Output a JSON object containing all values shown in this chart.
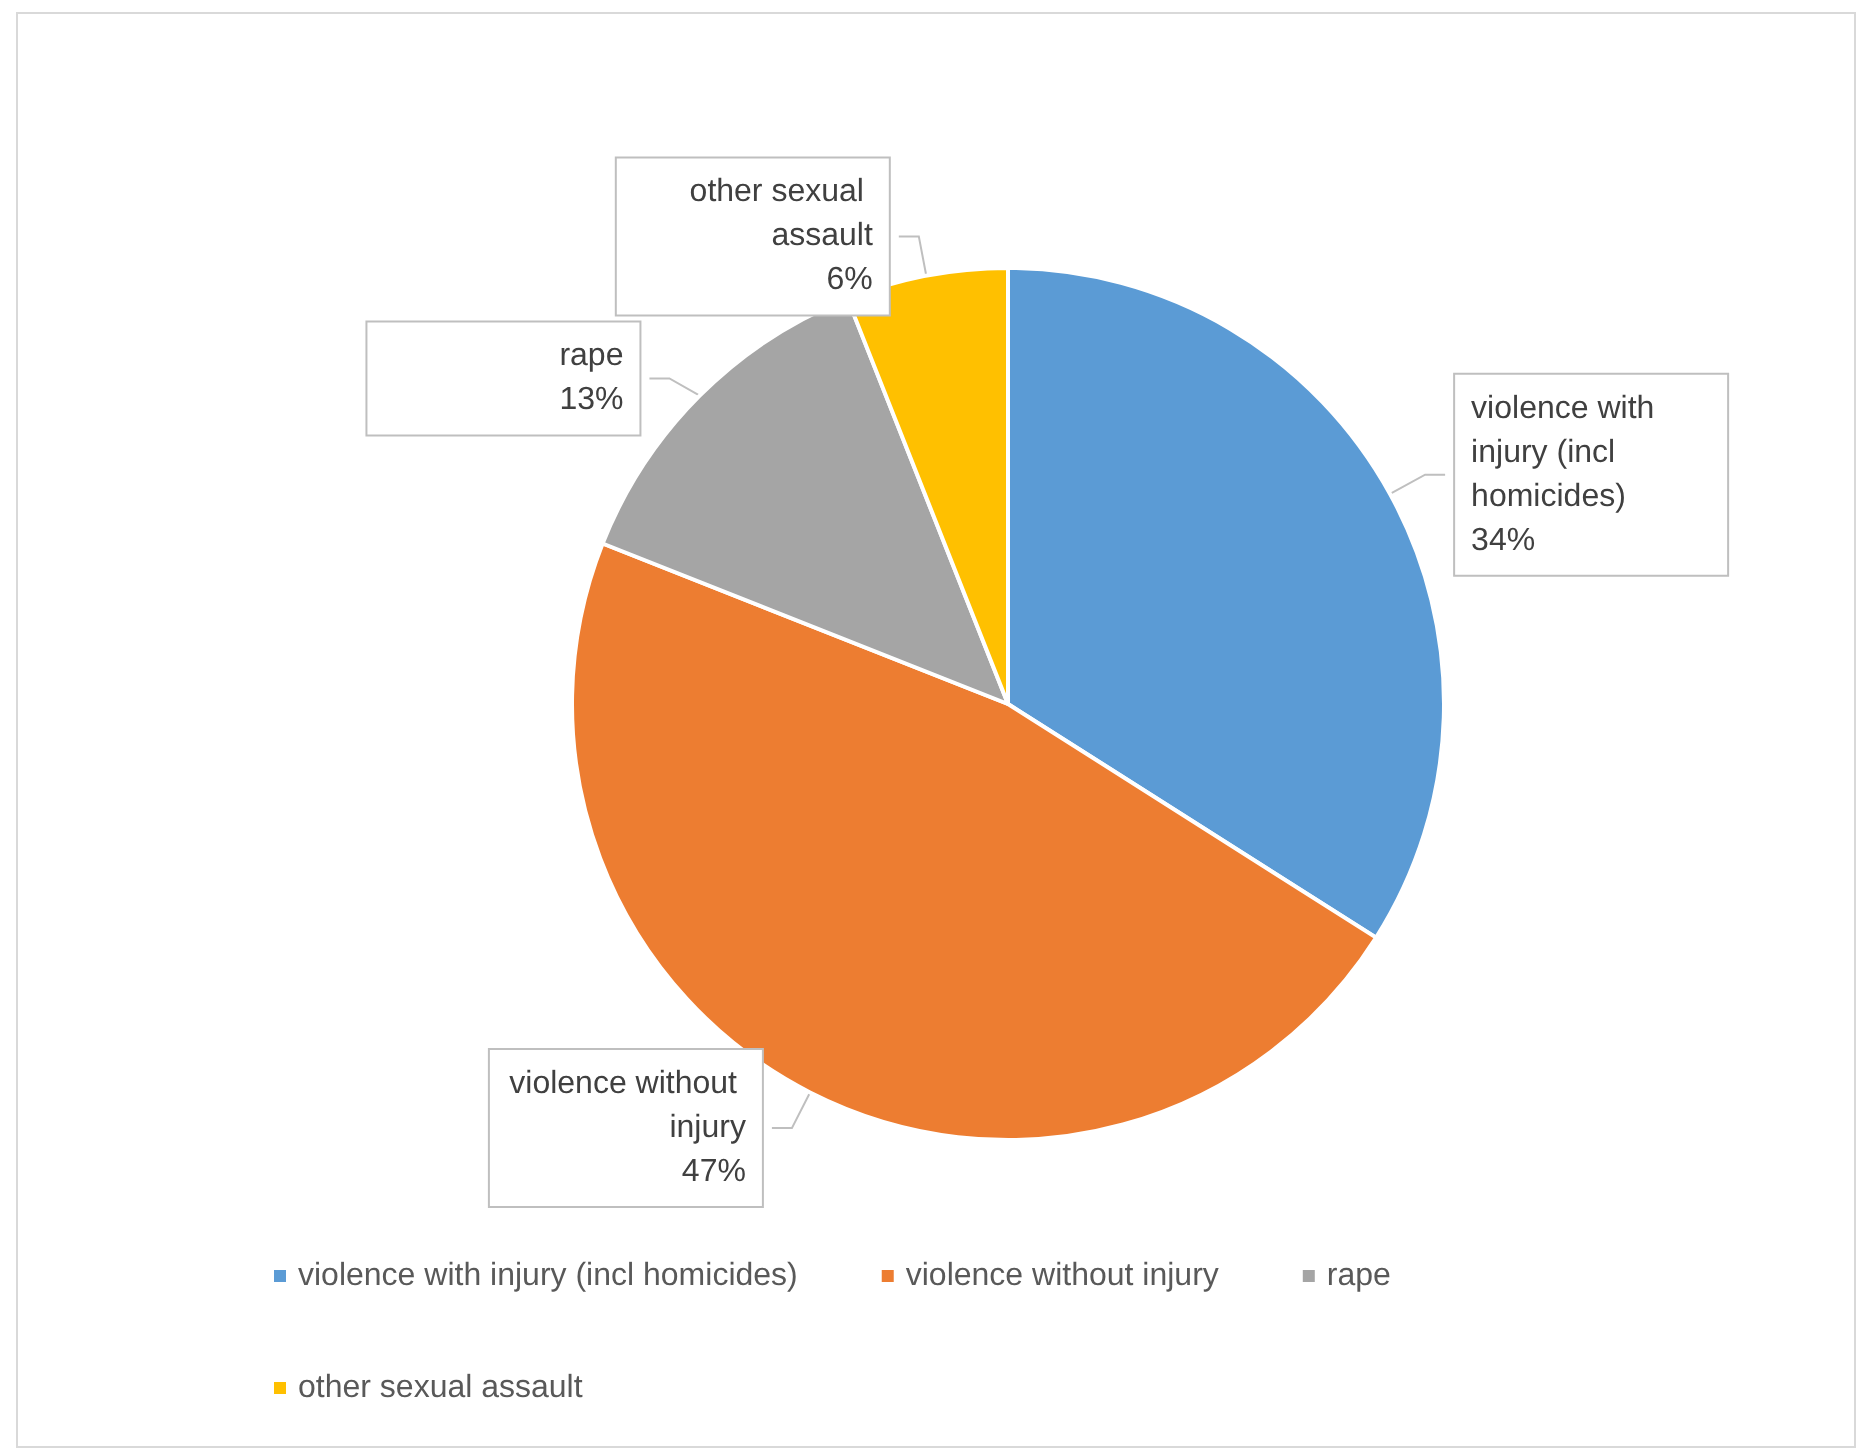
{
  "chart_data": {
    "type": "pie",
    "categories": [
      "violence with injury (incl homicides)",
      "violence without injury",
      "rape",
      "other sexual assault"
    ],
    "values": [
      34,
      47,
      13,
      6
    ],
    "colors": [
      "#5b9bd5",
      "#ed7d31",
      "#a5a5a5",
      "#ffc000"
    ],
    "value_labels": [
      "34%",
      "47%",
      "13%",
      "6%"
    ],
    "legend": "bottom"
  }
}
